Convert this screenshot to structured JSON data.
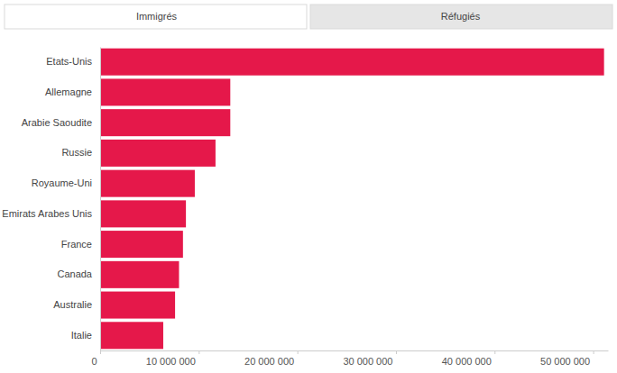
{
  "tabs": [
    "Immigrés",
    "Réfugiés"
  ],
  "chart_data": {
    "type": "bar",
    "orientation": "horizontal",
    "categories": [
      "Etats-Unis",
      "Allemagne",
      "Arabie Saoudite",
      "Russie",
      "Royaume-Uni",
      "Emirats Arabes Unis",
      "France",
      "Canada",
      "Australie",
      "Italie"
    ],
    "values": [
      51100000,
      13200000,
      13200000,
      11700000,
      9600000,
      8700000,
      8400000,
      8000000,
      7600000,
      6400000
    ],
    "color": "#e5184a",
    "xlim": [
      0,
      51500000
    ],
    "xticks": [
      0,
      {
        "value": 10000000,
        "label": "10 000 000"
      },
      {
        "value": 20000000,
        "label": "20 000 000"
      },
      {
        "value": 30000000,
        "label": "30 000 000"
      },
      {
        "value": 40000000,
        "label": "40 000 000"
      },
      {
        "value": 50000000,
        "label": "50 000 000"
      }
    ],
    "grid": false
  }
}
